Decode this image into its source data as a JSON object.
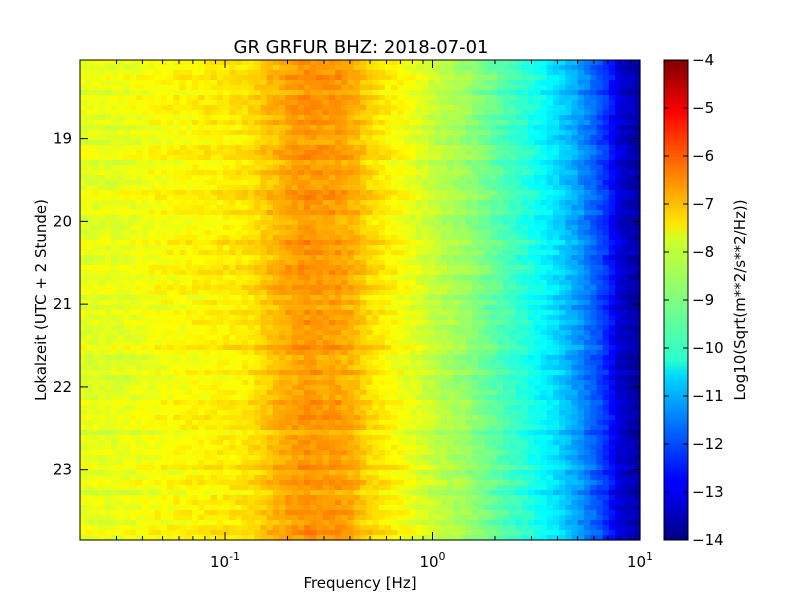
{
  "chart_data": {
    "type": "heatmap",
    "title": "GR GRFUR BHZ: 2018-07-01",
    "xlabel": "Frequency [Hz]",
    "ylabel": "Lokalzeit (UTC + 2 Stunde)",
    "x_scale": "log",
    "xlim": [
      0.02,
      10
    ],
    "x_ticks": [
      {
        "value": 0.1,
        "base": "10",
        "exp": "-1"
      },
      {
        "value": 1,
        "base": "10",
        "exp": "0"
      },
      {
        "value": 10,
        "base": "10",
        "exp": "1"
      }
    ],
    "ylim": [
      18.05,
      23.85
    ],
    "y_inverted": true,
    "y_ticks": [
      19,
      20,
      21,
      22,
      23
    ],
    "colormap": "jet",
    "colorbar": {
      "label": "Log10(Sqrt(m**2/s**2/Hz))",
      "range": [
        -14,
        -4
      ],
      "ticks": [
        -4,
        -5,
        -6,
        -7,
        -8,
        -9,
        -10,
        -11,
        -12,
        -13,
        -14
      ]
    },
    "profile": {
      "frequency": [
        0.02,
        0.03,
        0.05,
        0.07,
        0.1,
        0.13,
        0.16,
        0.2,
        0.25,
        0.3,
        0.35,
        0.42,
        0.5,
        0.7,
        1.0,
        1.5,
        2.0,
        3.0,
        4.0,
        5.0,
        6.0,
        7.0,
        8.0,
        10.0
      ],
      "level": [
        -8.0,
        -8.0,
        -7.8,
        -7.7,
        -7.6,
        -7.5,
        -7.2,
        -6.9,
        -6.7,
        -6.8,
        -6.8,
        -7.0,
        -7.4,
        -7.8,
        -8.3,
        -8.8,
        -9.3,
        -10.0,
        -10.6,
        -11.2,
        -11.8,
        -12.4,
        -13.2,
        -13.7
      ]
    }
  }
}
